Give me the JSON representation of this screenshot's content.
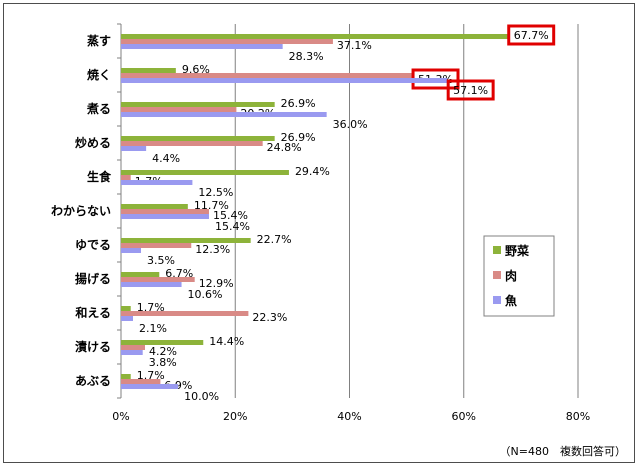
{
  "chart_data": {
    "type": "bar",
    "orientation": "horizontal",
    "categories": [
      "蒸す",
      "焼く",
      "煮る",
      "炒める",
      "生食",
      "わからない",
      "ゆでる",
      "揚げる",
      "和える",
      "漬ける",
      "あぶる"
    ],
    "series": [
      {
        "name": "野菜",
        "color": "#8db33a",
        "values": [
          67.7,
          9.6,
          26.9,
          26.9,
          29.4,
          11.7,
          22.7,
          6.7,
          1.7,
          14.4,
          1.7
        ]
      },
      {
        "name": "肉",
        "color": "#d98a86",
        "values": [
          37.1,
          51.3,
          20.2,
          24.8,
          1.7,
          15.4,
          12.3,
          12.9,
          22.3,
          4.2,
          6.9
        ]
      },
      {
        "name": "魚",
        "color": "#9a9af0",
        "values": [
          28.3,
          57.1,
          36.0,
          4.4,
          12.5,
          15.4,
          3.5,
          10.6,
          2.1,
          3.8,
          10.0
        ]
      }
    ],
    "value_labels": [
      [
        "67.7%",
        "37.1%",
        "28.3%"
      ],
      [
        "9.6%",
        "51.3%",
        "57.1%"
      ],
      [
        "26.9%",
        "20.2%",
        "36.0%"
      ],
      [
        "26.9%",
        "24.8%",
        "4.4%"
      ],
      [
        "29.4%",
        "1.7%",
        "12.5%"
      ],
      [
        "11.7%",
        "15.4%",
        "15.4%"
      ],
      [
        "22.7%",
        "12.3%",
        "3.5%"
      ],
      [
        "6.7%",
        "12.9%",
        "10.6%"
      ],
      [
        "1.7%",
        "22.3%",
        "2.1%"
      ],
      [
        "14.4%",
        "4.2%",
        "3.8%"
      ],
      [
        "1.7%",
        "6.9%",
        "10.0%"
      ]
    ],
    "highlighted": [
      [
        0,
        0
      ],
      [
        1,
        1
      ],
      [
        1,
        2
      ]
    ],
    "highlight_color": "#e00000",
    "x_ticks": [
      "0%",
      "20%",
      "40%",
      "60%",
      "80%"
    ],
    "xlim": [
      0,
      80
    ],
    "grid": true,
    "legend_position": "right",
    "note": "（N=480　複数回答可）"
  }
}
